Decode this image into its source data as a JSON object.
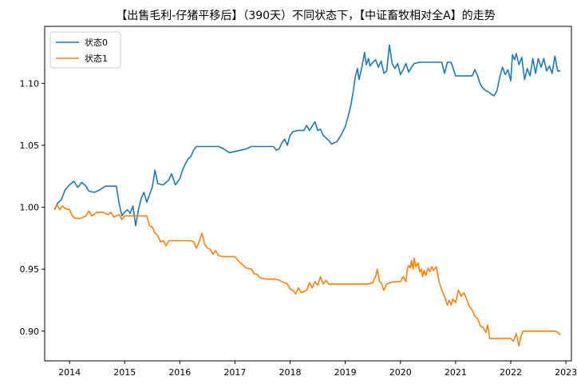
{
  "chart_data": {
    "type": "line",
    "title": "【出售毛利-仔猪平移后】（390天）不同状态下，【中证畜牧相对全A】的走势",
    "xlabel": "",
    "ylabel": "",
    "xlim": [
      2013.55,
      2023.1
    ],
    "ylim": [
      0.876,
      1.146
    ],
    "xticks": [
      2014,
      2015,
      2016,
      2017,
      2018,
      2019,
      2020,
      2021,
      2022,
      2023
    ],
    "xtick_labels": [
      "2014",
      "2015",
      "2016",
      "2017",
      "2018",
      "2019",
      "2020",
      "2021",
      "2022",
      "2023"
    ],
    "yticks": [
      0.9,
      0.95,
      1.0,
      1.05,
      1.1
    ],
    "ytick_labels": [
      "0.90",
      "0.95",
      "1.00",
      "1.05",
      "1.10"
    ],
    "grid": false,
    "legend_position": "top-left",
    "series": [
      {
        "name": "状态0",
        "color": "#1f77b4",
        "points": [
          [
            2013.73,
            0.998
          ],
          [
            2013.78,
            1.003
          ],
          [
            2013.85,
            1.006
          ],
          [
            2013.92,
            1.014
          ],
          [
            2014.0,
            1.018
          ],
          [
            2014.08,
            1.021
          ],
          [
            2014.15,
            1.016
          ],
          [
            2014.22,
            1.02
          ],
          [
            2014.3,
            1.017
          ],
          [
            2014.35,
            1.013
          ],
          [
            2014.45,
            1.012
          ],
          [
            2014.55,
            1.014
          ],
          [
            2014.65,
            1.017
          ],
          [
            2014.75,
            1.017
          ],
          [
            2014.85,
            1.017
          ],
          [
            2014.9,
            1.003
          ],
          [
            2014.95,
            0.993
          ],
          [
            2015.0,
            0.996
          ],
          [
            2015.05,
            0.998
          ],
          [
            2015.1,
            0.995
          ],
          [
            2015.15,
            1.001
          ],
          [
            2015.2,
            0.985
          ],
          [
            2015.25,
            0.998
          ],
          [
            2015.3,
            1.007
          ],
          [
            2015.35,
            1.012
          ],
          [
            2015.4,
            1.004
          ],
          [
            2015.45,
            1.01
          ],
          [
            2015.5,
            1.016
          ],
          [
            2015.55,
            1.03
          ],
          [
            2015.6,
            1.019
          ],
          [
            2015.7,
            1.018
          ],
          [
            2015.8,
            1.022
          ],
          [
            2015.85,
            1.027
          ],
          [
            2015.92,
            1.018
          ],
          [
            2016.0,
            1.023
          ],
          [
            2016.05,
            1.03
          ],
          [
            2016.1,
            1.035
          ],
          [
            2016.15,
            1.039
          ],
          [
            2016.2,
            1.041
          ],
          [
            2016.25,
            1.046
          ],
          [
            2016.3,
            1.049
          ],
          [
            2016.5,
            1.049
          ],
          [
            2016.7,
            1.049
          ],
          [
            2016.8,
            1.047
          ],
          [
            2016.9,
            1.044
          ],
          [
            2017.0,
            1.045
          ],
          [
            2017.1,
            1.046
          ],
          [
            2017.2,
            1.047
          ],
          [
            2017.3,
            1.049
          ],
          [
            2017.45,
            1.049
          ],
          [
            2017.6,
            1.049
          ],
          [
            2017.7,
            1.049
          ],
          [
            2017.75,
            1.046
          ],
          [
            2017.8,
            1.047
          ],
          [
            2017.85,
            1.052
          ],
          [
            2017.9,
            1.055
          ],
          [
            2017.95,
            1.05
          ],
          [
            2018.0,
            1.058
          ],
          [
            2018.05,
            1.061
          ],
          [
            2018.15,
            1.062
          ],
          [
            2018.25,
            1.062
          ],
          [
            2018.3,
            1.066
          ],
          [
            2018.35,
            1.062
          ],
          [
            2018.45,
            1.069
          ],
          [
            2018.5,
            1.062
          ],
          [
            2018.55,
            1.063
          ],
          [
            2018.6,
            1.058
          ],
          [
            2018.7,
            1.054
          ],
          [
            2018.75,
            1.051
          ],
          [
            2018.85,
            1.053
          ],
          [
            2018.92,
            1.058
          ],
          [
            2019.0,
            1.065
          ],
          [
            2019.05,
            1.073
          ],
          [
            2019.1,
            1.082
          ],
          [
            2019.15,
            1.095
          ],
          [
            2019.18,
            1.105
          ],
          [
            2019.22,
            1.112
          ],
          [
            2019.25,
            1.103
          ],
          [
            2019.3,
            1.113
          ],
          [
            2019.35,
            1.125
          ],
          [
            2019.38,
            1.115
          ],
          [
            2019.42,
            1.12
          ],
          [
            2019.45,
            1.114
          ],
          [
            2019.5,
            1.117
          ],
          [
            2019.55,
            1.119
          ],
          [
            2019.6,
            1.113
          ],
          [
            2019.65,
            1.118
          ],
          [
            2019.7,
            1.108
          ],
          [
            2019.75,
            1.11
          ],
          [
            2019.8,
            1.131
          ],
          [
            2019.85,
            1.116
          ],
          [
            2019.9,
            1.112
          ],
          [
            2019.95,
            1.116
          ],
          [
            2020.0,
            1.107
          ],
          [
            2020.05,
            1.111
          ],
          [
            2020.1,
            1.116
          ],
          [
            2020.15,
            1.109
          ],
          [
            2020.2,
            1.113
          ],
          [
            2020.25,
            1.116
          ],
          [
            2020.35,
            1.117
          ],
          [
            2020.5,
            1.117
          ],
          [
            2020.65,
            1.117
          ],
          [
            2020.75,
            1.117
          ],
          [
            2020.8,
            1.108
          ],
          [
            2020.85,
            1.117
          ],
          [
            2020.92,
            1.117
          ],
          [
            2021.0,
            1.106
          ],
          [
            2021.1,
            1.106
          ],
          [
            2021.2,
            1.106
          ],
          [
            2021.3,
            1.106
          ],
          [
            2021.35,
            1.111
          ],
          [
            2021.4,
            1.106
          ],
          [
            2021.45,
            1.099
          ],
          [
            2021.5,
            1.096
          ],
          [
            2021.55,
            1.094
          ],
          [
            2021.6,
            1.093
          ],
          [
            2021.65,
            1.091
          ],
          [
            2021.7,
            1.09
          ],
          [
            2021.75,
            1.094
          ],
          [
            2021.8,
            1.105
          ],
          [
            2021.85,
            1.113
          ],
          [
            2021.9,
            1.107
          ],
          [
            2021.95,
            1.111
          ],
          [
            2022.0,
            1.102
          ],
          [
            2022.03,
            1.123
          ],
          [
            2022.07,
            1.119
          ],
          [
            2022.1,
            1.124
          ],
          [
            2022.15,
            1.115
          ],
          [
            2022.2,
            1.121
          ],
          [
            2022.25,
            1.103
          ],
          [
            2022.3,
            1.112
          ],
          [
            2022.35,
            1.106
          ],
          [
            2022.4,
            1.12
          ],
          [
            2022.45,
            1.108
          ],
          [
            2022.5,
            1.12
          ],
          [
            2022.55,
            1.113
          ],
          [
            2022.6,
            1.12
          ],
          [
            2022.65,
            1.11
          ],
          [
            2022.7,
            1.114
          ],
          [
            2022.75,
            1.108
          ],
          [
            2022.8,
            1.122
          ],
          [
            2022.85,
            1.11
          ],
          [
            2022.9,
            1.11
          ]
        ]
      },
      {
        "name": "状态1",
        "color": "#ff7f0e",
        "points": [
          [
            2013.73,
            0.999
          ],
          [
            2013.78,
            1.002
          ],
          [
            2013.82,
            0.998
          ],
          [
            2013.87,
            1.001
          ],
          [
            2013.92,
            0.999
          ],
          [
            2014.0,
            0.998
          ],
          [
            2014.05,
            0.993
          ],
          [
            2014.1,
            0.991
          ],
          [
            2014.2,
            0.991
          ],
          [
            2014.3,
            0.993
          ],
          [
            2014.35,
            0.997
          ],
          [
            2014.4,
            0.993
          ],
          [
            2014.5,
            0.996
          ],
          [
            2014.6,
            0.996
          ],
          [
            2014.7,
            0.994
          ],
          [
            2014.75,
            0.996
          ],
          [
            2014.8,
            0.992
          ],
          [
            2014.9,
            0.994
          ],
          [
            2014.95,
            0.99
          ],
          [
            2015.0,
            0.993
          ],
          [
            2015.1,
            0.993
          ],
          [
            2015.2,
            0.993
          ],
          [
            2015.3,
            0.993
          ],
          [
            2015.4,
            0.993
          ],
          [
            2015.45,
            0.985
          ],
          [
            2015.5,
            0.984
          ],
          [
            2015.55,
            0.979
          ],
          [
            2015.6,
            0.977
          ],
          [
            2015.65,
            0.972
          ],
          [
            2015.7,
            0.973
          ],
          [
            2015.75,
            0.969
          ],
          [
            2015.8,
            0.973
          ],
          [
            2015.9,
            0.973
          ],
          [
            2016.0,
            0.973
          ],
          [
            2016.1,
            0.973
          ],
          [
            2016.2,
            0.973
          ],
          [
            2016.25,
            0.972
          ],
          [
            2016.3,
            0.967
          ],
          [
            2016.35,
            0.972
          ],
          [
            2016.4,
            0.979
          ],
          [
            2016.45,
            0.97
          ],
          [
            2016.5,
            0.967
          ],
          [
            2016.55,
            0.966
          ],
          [
            2016.6,
            0.962
          ],
          [
            2016.65,
            0.965
          ],
          [
            2016.7,
            0.961
          ],
          [
            2016.8,
            0.96
          ],
          [
            2016.9,
            0.96
          ],
          [
            2017.0,
            0.96
          ],
          [
            2017.1,
            0.955
          ],
          [
            2017.2,
            0.951
          ],
          [
            2017.3,
            0.95
          ],
          [
            2017.35,
            0.946
          ],
          [
            2017.4,
            0.946
          ],
          [
            2017.45,
            0.943
          ],
          [
            2017.55,
            0.942
          ],
          [
            2017.65,
            0.942
          ],
          [
            2017.75,
            0.942
          ],
          [
            2017.85,
            0.94
          ],
          [
            2017.95,
            0.938
          ],
          [
            2018.0,
            0.934
          ],
          [
            2018.05,
            0.933
          ],
          [
            2018.1,
            0.93
          ],
          [
            2018.15,
            0.935
          ],
          [
            2018.2,
            0.931
          ],
          [
            2018.3,
            0.933
          ],
          [
            2018.35,
            0.939
          ],
          [
            2018.4,
            0.935
          ],
          [
            2018.45,
            0.94
          ],
          [
            2018.5,
            0.937
          ],
          [
            2018.55,
            0.944
          ],
          [
            2018.6,
            0.938
          ],
          [
            2018.65,
            0.941
          ],
          [
            2018.7,
            0.938
          ],
          [
            2018.8,
            0.938
          ],
          [
            2018.9,
            0.938
          ],
          [
            2019.0,
            0.938
          ],
          [
            2019.1,
            0.938
          ],
          [
            2019.2,
            0.938
          ],
          [
            2019.3,
            0.938
          ],
          [
            2019.4,
            0.938
          ],
          [
            2019.5,
            0.939
          ],
          [
            2019.52,
            0.942
          ],
          [
            2019.55,
            0.944
          ],
          [
            2019.58,
            0.95
          ],
          [
            2019.62,
            0.94
          ],
          [
            2019.65,
            0.939
          ],
          [
            2019.7,
            0.933
          ],
          [
            2019.75,
            0.938
          ],
          [
            2019.8,
            0.939
          ],
          [
            2019.9,
            0.94
          ],
          [
            2020.0,
            0.94
          ],
          [
            2020.05,
            0.944
          ],
          [
            2020.1,
            0.94
          ],
          [
            2020.12,
            0.949
          ],
          [
            2020.15,
            0.953
          ],
          [
            2020.18,
            0.951
          ],
          [
            2020.2,
            0.957
          ],
          [
            2020.23,
            0.95
          ],
          [
            2020.25,
            0.959
          ],
          [
            2020.28,
            0.952
          ],
          [
            2020.32,
            0.955
          ],
          [
            2020.35,
            0.948
          ],
          [
            2020.38,
            0.95
          ],
          [
            2020.4,
            0.944
          ],
          [
            2020.43,
            0.949
          ],
          [
            2020.46,
            0.945
          ],
          [
            2020.5,
            0.951
          ],
          [
            2020.53,
            0.948
          ],
          [
            2020.57,
            0.952
          ],
          [
            2020.6,
            0.949
          ],
          [
            2020.65,
            0.952
          ],
          [
            2020.7,
            0.94
          ],
          [
            2020.75,
            0.933
          ],
          [
            2020.8,
            0.928
          ],
          [
            2020.85,
            0.921
          ],
          [
            2020.88,
            0.925
          ],
          [
            2020.92,
            0.921
          ],
          [
            2020.95,
            0.926
          ],
          [
            2021.0,
            0.923
          ],
          [
            2021.05,
            0.933
          ],
          [
            2021.1,
            0.928
          ],
          [
            2021.15,
            0.931
          ],
          [
            2021.2,
            0.926
          ],
          [
            2021.25,
            0.92
          ],
          [
            2021.3,
            0.917
          ],
          [
            2021.35,
            0.912
          ],
          [
            2021.4,
            0.91
          ],
          [
            2021.45,
            0.904
          ],
          [
            2021.5,
            0.903
          ],
          [
            2021.55,
            0.899
          ],
          [
            2021.58,
            0.905
          ],
          [
            2021.62,
            0.894
          ],
          [
            2021.7,
            0.894
          ],
          [
            2021.8,
            0.894
          ],
          [
            2021.9,
            0.894
          ],
          [
            2022.0,
            0.894
          ],
          [
            2022.05,
            0.892
          ],
          [
            2022.1,
            0.898
          ],
          [
            2022.15,
            0.888
          ],
          [
            2022.18,
            0.895
          ],
          [
            2022.22,
            0.9
          ],
          [
            2022.3,
            0.9
          ],
          [
            2022.4,
            0.9
          ],
          [
            2022.5,
            0.9
          ],
          [
            2022.6,
            0.9
          ],
          [
            2022.7,
            0.9
          ],
          [
            2022.8,
            0.9
          ],
          [
            2022.85,
            0.899
          ],
          [
            2022.9,
            0.897
          ]
        ]
      }
    ]
  }
}
